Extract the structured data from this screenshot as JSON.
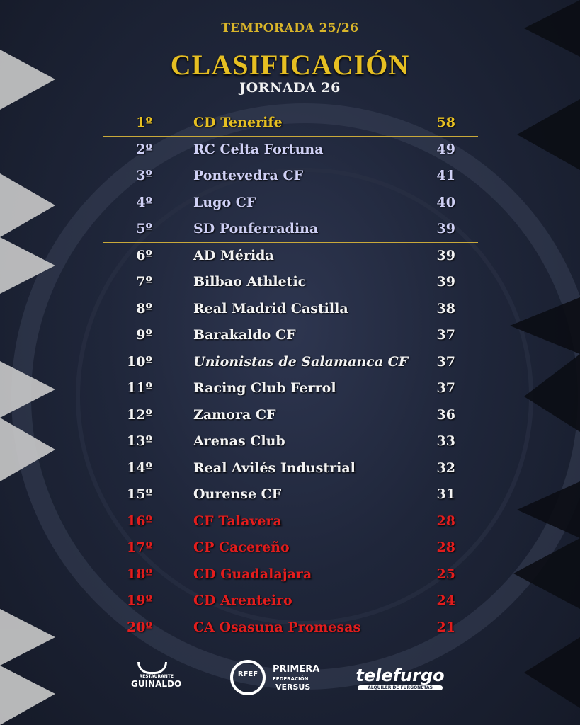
{
  "header": {
    "season": "TEMPORADA 25/26",
    "title": "CLASIFICACIÓN",
    "round": "JORNADA 26"
  },
  "colors": {
    "gold": "#e6bf22",
    "promotion": "#cfd0f5",
    "mid": "#f3f3f3",
    "relegation": "#e21d1d"
  },
  "standings": [
    {
      "pos": "1º",
      "team": "CD Tenerife",
      "pts": "58",
      "zone": "gold"
    },
    {
      "pos": "2º",
      "team": "RC Celta Fortuna",
      "pts": "49",
      "zone": "lav"
    },
    {
      "pos": "3º",
      "team": "Pontevedra CF",
      "pts": "41",
      "zone": "lav"
    },
    {
      "pos": "4º",
      "team": "Lugo CF",
      "pts": "40",
      "zone": "lav"
    },
    {
      "pos": "5º",
      "team": "SD Ponferradina",
      "pts": "39",
      "zone": "lav"
    },
    {
      "pos": "6º",
      "team": "AD Mérida",
      "pts": "39",
      "zone": "white"
    },
    {
      "pos": "7º",
      "team": "Bilbao Athletic",
      "pts": "39",
      "zone": "white"
    },
    {
      "pos": "8º",
      "team": "Real Madrid Castilla",
      "pts": "38",
      "zone": "white"
    },
    {
      "pos": "9º",
      "team": "Barakaldo CF",
      "pts": "37",
      "zone": "white"
    },
    {
      "pos": "10º",
      "team": "Unionistas de Salamanca CF",
      "pts": "37",
      "zone": "white",
      "italic": true
    },
    {
      "pos": "11º",
      "team": "Racing Club Ferrol",
      "pts": "37",
      "zone": "white"
    },
    {
      "pos": "12º",
      "team": "Zamora CF",
      "pts": "36",
      "zone": "white"
    },
    {
      "pos": "13º",
      "team": "Arenas Club",
      "pts": "33",
      "zone": "white"
    },
    {
      "pos": "14º",
      "team": "Real Avilés Industrial",
      "pts": "32",
      "zone": "white"
    },
    {
      "pos": "15º",
      "team": "Ourense CF",
      "pts": "31",
      "zone": "white"
    },
    {
      "pos": "16º",
      "team": "CF Talavera",
      "pts": "28",
      "zone": "red"
    },
    {
      "pos": "17º",
      "team": "CP Cacereño",
      "pts": "28",
      "zone": "red"
    },
    {
      "pos": "18º",
      "team": "CD Guadalajara",
      "pts": "25",
      "zone": "red"
    },
    {
      "pos": "19º",
      "team": "CD Arenteiro",
      "pts": "24",
      "zone": "red"
    },
    {
      "pos": "20º",
      "team": "CA Osasuna Promesas",
      "pts": "21",
      "zone": "red"
    }
  ],
  "sponsors": [
    {
      "name": "GUINALDO",
      "sub": "RESTAURANTE"
    },
    {
      "name": "RFEF",
      "line1": "PRIMERA",
      "line2": "FEDERACIÓN",
      "line3": "VERSUS"
    },
    {
      "name": "telefurgo",
      "sub": "ALQUILER DE FURGONETAS"
    }
  ]
}
